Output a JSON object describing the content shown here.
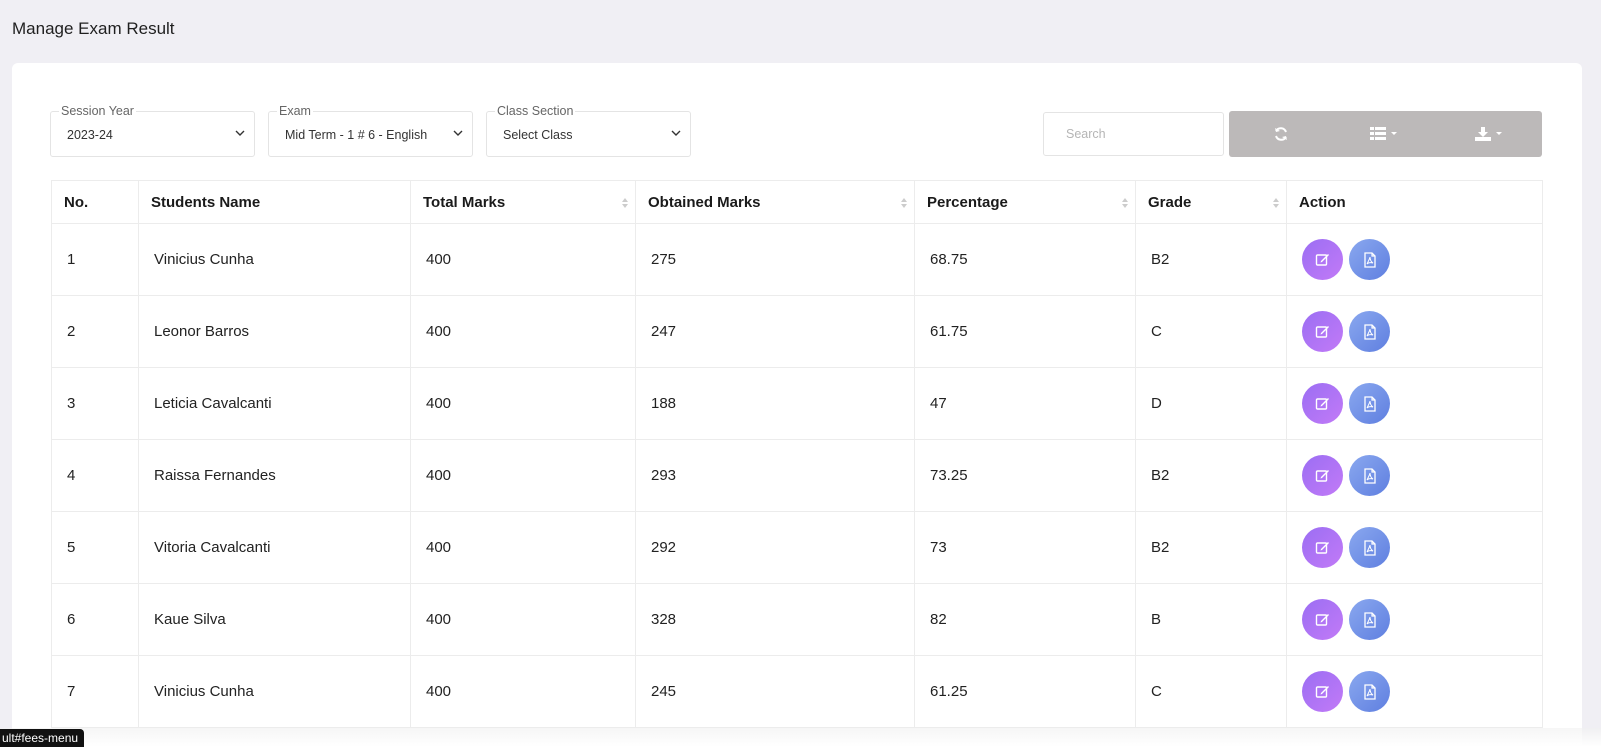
{
  "page_title": "Manage Exam Result",
  "filters": {
    "session_year": {
      "label": "Session Year",
      "value": "2023-24"
    },
    "exam": {
      "label": "Exam",
      "value": "Mid Term - 1 # 6 - English"
    },
    "class_section": {
      "label": "Class Section",
      "value": "Select Class"
    }
  },
  "search": {
    "placeholder": "Search"
  },
  "toolbar": {
    "refresh_icon": "refresh-icon",
    "columns_icon": "list-icon",
    "export_icon": "download-icon"
  },
  "table": {
    "headers": [
      "No.",
      "Students Name",
      "Total Marks",
      "Obtained Marks",
      "Percentage",
      "Grade",
      "Action"
    ],
    "rows": [
      {
        "no": "1",
        "name": "Vinicius Cunha",
        "total": "400",
        "obtained": "275",
        "percentage": "68.75",
        "grade": "B2"
      },
      {
        "no": "2",
        "name": "Leonor Barros",
        "total": "400",
        "obtained": "247",
        "percentage": "61.75",
        "grade": "C"
      },
      {
        "no": "3",
        "name": "Leticia Cavalcanti",
        "total": "400",
        "obtained": "188",
        "percentage": "47",
        "grade": "D"
      },
      {
        "no": "4",
        "name": "Raissa Fernandes",
        "total": "400",
        "obtained": "293",
        "percentage": "73.25",
        "grade": "B2"
      },
      {
        "no": "5",
        "name": "Vitoria Cavalcanti",
        "total": "400",
        "obtained": "292",
        "percentage": "73",
        "grade": "B2"
      },
      {
        "no": "6",
        "name": "Kaue Silva",
        "total": "400",
        "obtained": "328",
        "percentage": "82",
        "grade": "B"
      },
      {
        "no": "7",
        "name": "Vinicius Cunha",
        "total": "400",
        "obtained": "245",
        "percentage": "61.25",
        "grade": "C"
      }
    ]
  },
  "status_url": "ult#fees-menu",
  "colors": {
    "background": "#f0eff4",
    "edit_button": "#b377f5",
    "pdf_button": "#7593e8",
    "toolbar": "#bcb9b9"
  }
}
